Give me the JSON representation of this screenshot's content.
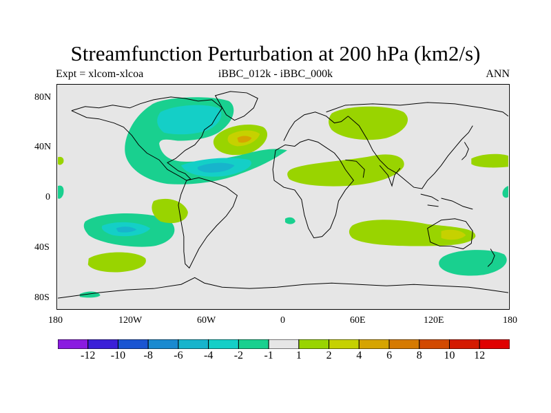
{
  "title": "Streamfunction Perturbation at 200 hPa (km2/s)",
  "subtitle_left": "Expt = xlcom-xlcoa",
  "subtitle_center": "iBBC_012k - iBBC_000k",
  "subtitle_right": "ANN",
  "lat_labels": [
    "80N",
    "40N",
    "0",
    "40S",
    "80S"
  ],
  "lon_labels": [
    "180",
    "120W",
    "60W",
    "0",
    "60E",
    "120E",
    "180"
  ],
  "colorbar": {
    "labels": [
      "-12",
      "-10",
      "-8",
      "-6",
      "-4",
      "-2",
      "-1",
      "1",
      "2",
      "4",
      "6",
      "8",
      "10",
      "12"
    ],
    "colors": [
      "#8a1be0",
      "#3b1fd8",
      "#1a55d2",
      "#1a8ad0",
      "#17b4cc",
      "#14cfc7",
      "#19d08f",
      "#e6e6e6",
      "#99d400",
      "#c6d100",
      "#d6a400",
      "#d67a00",
      "#d24a00",
      "#d41a00",
      "#e00000"
    ]
  },
  "colors": {
    "land_bg": "#e6e6e6",
    "neg_small": "#19d08f",
    "neg_mid": "#14cfc7",
    "neg_large": "#17b4cc",
    "pos_small": "#99d400",
    "pos_mid": "#c6d100",
    "pos_large": "#d6a400"
  }
}
